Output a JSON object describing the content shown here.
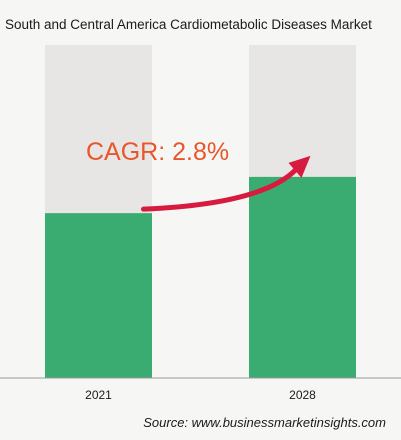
{
  "chart_data": {
    "type": "bar",
    "title": "South and Central America Cardiometabolic Diseases Market",
    "categories": [
      "2021",
      "2028"
    ],
    "values": [
      1.0,
      1.22
    ],
    "ylim": [
      0,
      2.02
    ],
    "xlabel": "",
    "ylabel": "",
    "grid": false,
    "annotation": "CAGR: 2.8%",
    "source": "Source: www.businessmarketinsights.com",
    "colors": {
      "bar": "#3aac72",
      "track": "#e8e5e5",
      "arrow": "#d81a3f",
      "annotation": "#e8562a",
      "background": "#f6f7f5"
    }
  }
}
